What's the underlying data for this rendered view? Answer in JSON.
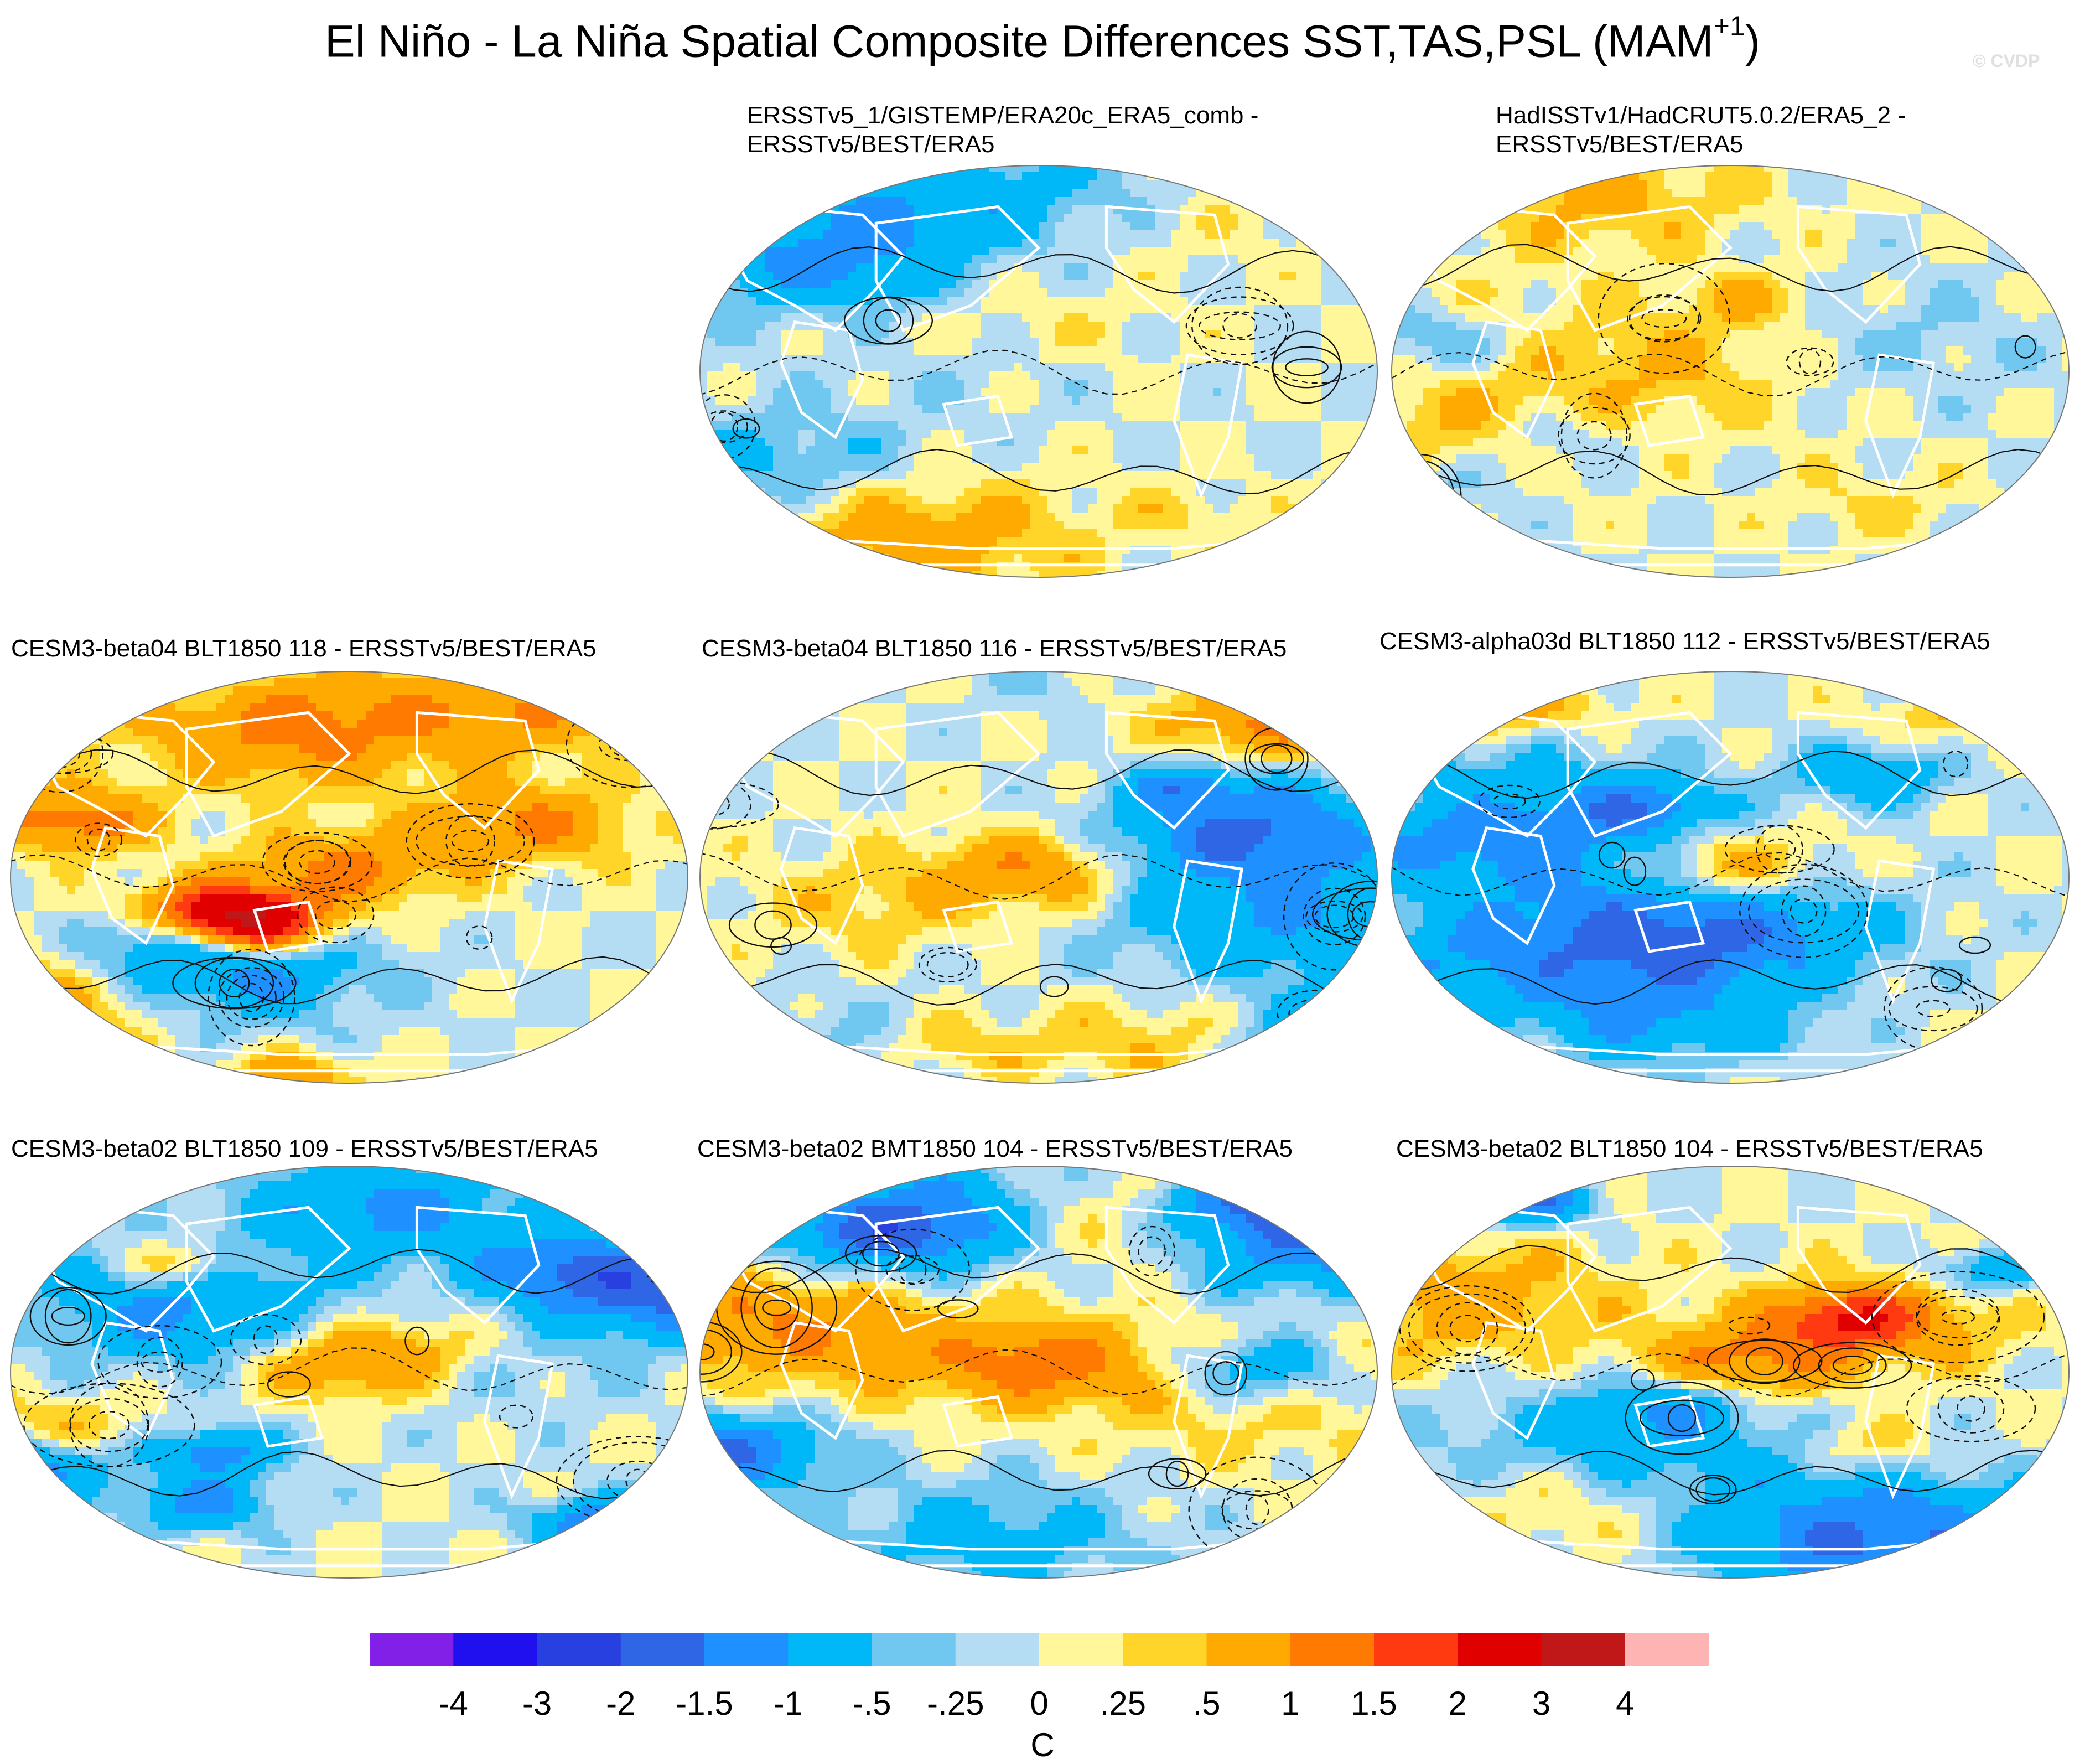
{
  "title": {
    "main": "El Niño - La Niña Spatial Composite Differences SST,TAS,PSL (MAM",
    "superscript": "+1",
    "close": ")"
  },
  "credit": "© CVDP",
  "chart_data": {
    "type": "heatmap",
    "title": "El Niño - La Niña Spatial Composite Differences SST,TAS,PSL (MAM+1)",
    "projection": "global equal-area (Robinson-like) maps",
    "overlay": "PSL difference contours (solid positive, dashed negative)",
    "panels": [
      {
        "label_line1": "ERSSTv5_1/GISTEMP/ERA20c_ERA5_comb -",
        "label_line2": "ERSSTv5/BEST/ERA5",
        "grid": "row1-col2",
        "seed": 11
      },
      {
        "label_line1": "HadISSTv1/HadCRUT5.0.2/ERA5_2 -",
        "label_line2": "ERSSTv5/BEST/ERA5",
        "grid": "row1-col3",
        "seed": 23
      },
      {
        "label_line1": "CESM3-beta04 BLT1850 118 - ERSSTv5/BEST/ERA5",
        "label_line2": "",
        "grid": "row2-col1",
        "seed": 37
      },
      {
        "label_line1": "CESM3-beta04 BLT1850 116 - ERSSTv5/BEST/ERA5",
        "label_line2": "",
        "grid": "row2-col2",
        "seed": 41
      },
      {
        "label_line1": "CESM3-alpha03d BLT1850 112 - ERSSTv5/BEST/ERA5",
        "label_line2": "",
        "grid": "row2-col3",
        "seed": 53
      },
      {
        "label_line1": "CESM3-beta02 BLT1850 109 - ERSSTv5/BEST/ERA5",
        "label_line2": "",
        "grid": "row3-col1",
        "seed": 67
      },
      {
        "label_line1": "CESM3-beta02 BMT1850 104 - ERSSTv5/BEST/ERA5",
        "label_line2": "",
        "grid": "row3-col2",
        "seed": 79
      },
      {
        "label_line1": "CESM3-beta02 BLT1850 104 - ERSSTv5/BEST/ERA5",
        "label_line2": "",
        "grid": "row3-col3",
        "seed": 83
      }
    ],
    "colorbar": {
      "units": "C",
      "tick_labels": [
        "-4",
        "-3",
        "-2",
        "-1.5",
        "-1",
        "-.5",
        "-.25",
        "0",
        ".25",
        ".5",
        "1",
        "1.5",
        "2",
        "3",
        "4"
      ],
      "levels": [
        -4,
        -3,
        -2,
        -1.5,
        -1,
        -0.5,
        -0.25,
        0,
        0.25,
        0.5,
        1,
        1.5,
        2,
        3,
        4
      ],
      "colors": [
        "#8320e8",
        "#2010f0",
        "#2840e0",
        "#2e66e6",
        "#1e90ff",
        "#00b8f8",
        "#70c8f0",
        "#b4dcf2",
        "#fff79a",
        "#ffd52a",
        "#ffaa00",
        "#ff7a00",
        "#ff3a10",
        "#e00000",
        "#c01818",
        "#ffb4b4"
      ]
    }
  }
}
